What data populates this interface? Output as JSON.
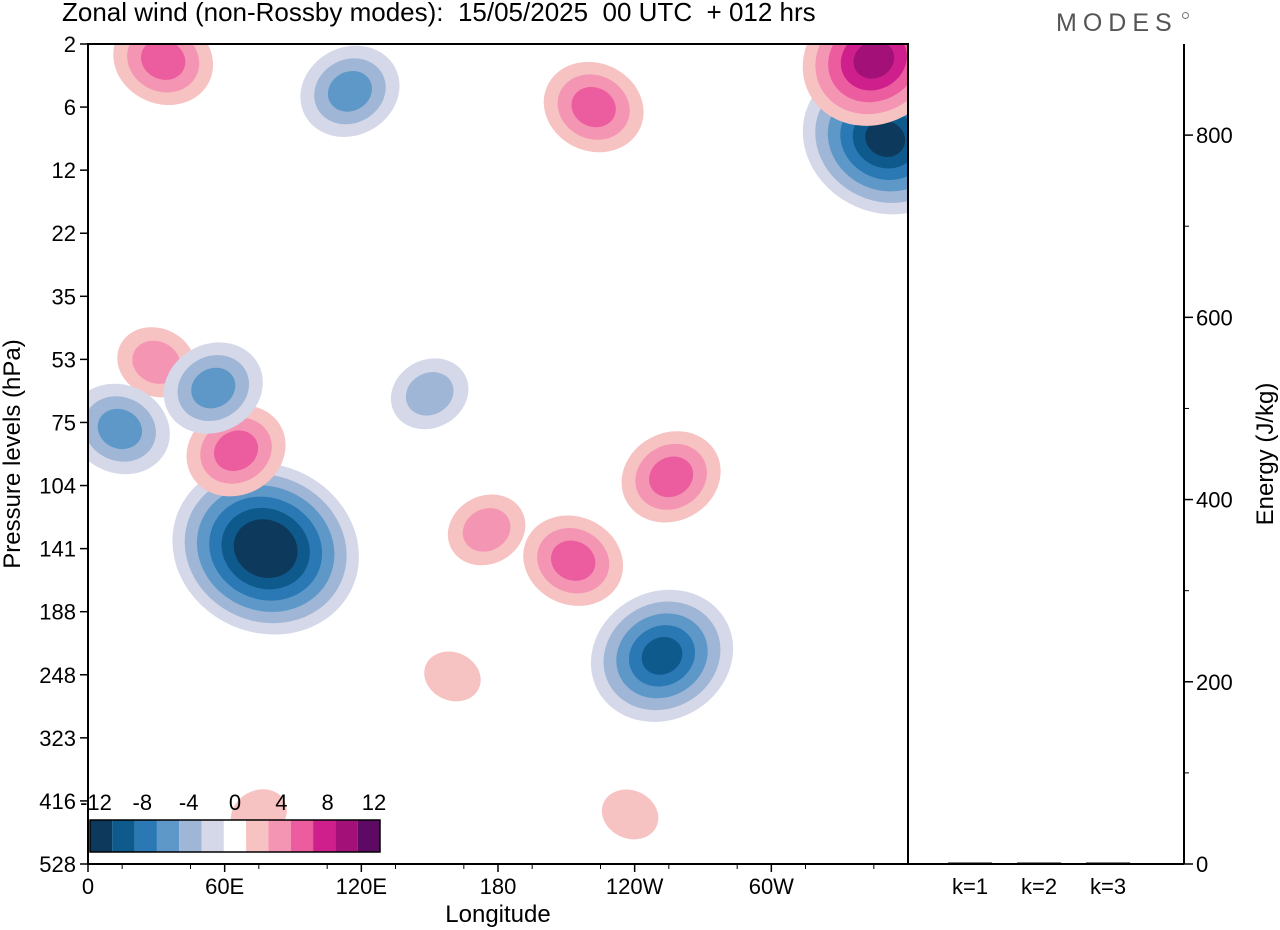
{
  "title": "Zonal wind (non-Rossby modes):  15/05/2025  00 UTC  + 012 hrs",
  "brand": "MODES",
  "colors": {
    "neg": [
      "#0d3a5c",
      "#0f5a8c",
      "#2a78b4",
      "#5e98c8",
      "#9fb6d6",
      "#d4d8e8"
    ],
    "zero": "#ffffff",
    "pos": [
      "#f7c2c2",
      "#f495b3",
      "#ec5da0",
      "#cf1f8c",
      "#a21078",
      "#5c0a64"
    ]
  },
  "chart_data": [
    {
      "type": "heatmap",
      "title": "Zonal wind (non-Rossby modes):  15/05/2025  00 UTC  + 012 hrs",
      "xlabel": "Longitude",
      "ylabel": "Pressure levels (hPa)",
      "x_ticks": [
        "0",
        "60E",
        "120E",
        "180",
        "120W",
        "60W"
      ],
      "y_ticks": [
        "2",
        "6",
        "12",
        "22",
        "35",
        "53",
        "75",
        "104",
        "141",
        "188",
        "248",
        "323",
        "416",
        "528"
      ],
      "colorbar": {
        "tick_labels": [
          "-12",
          "-8",
          "-4",
          "0",
          "4",
          "8",
          "12"
        ],
        "levels": [
          -14,
          -12,
          -10,
          -8,
          -6,
          -4,
          -2,
          2,
          4,
          6,
          8,
          10,
          12,
          14
        ]
      },
      "features": [
        {
          "lon": 78,
          "level": 141,
          "value": -14
        },
        {
          "lon": 252,
          "level": 230,
          "value": -10
        },
        {
          "lon": 350,
          "level": 9,
          "value": -12
        },
        {
          "lon": 115,
          "level": 5,
          "value": -6
        },
        {
          "lon": 33,
          "level": 3,
          "value": 7
        },
        {
          "lon": 345,
          "level": 3,
          "value": 10
        },
        {
          "lon": 222,
          "level": 6,
          "value": 6
        },
        {
          "lon": 65,
          "level": 88,
          "value": 7
        },
        {
          "lon": 213,
          "level": 150,
          "value": 7
        },
        {
          "lon": 256,
          "level": 100,
          "value": 6
        },
        {
          "lon": 30,
          "level": 54,
          "value": 4
        },
        {
          "lon": 55,
          "level": 63,
          "value": -6
        },
        {
          "lon": 14,
          "level": 78,
          "value": -6
        },
        {
          "lon": 175,
          "level": 130,
          "value": 5
        },
        {
          "lon": 238,
          "level": 440,
          "value": 3
        },
        {
          "lon": 75,
          "level": 440,
          "value": 3
        },
        {
          "lon": 160,
          "level": 250,
          "value": 3
        },
        {
          "lon": 150,
          "level": 65,
          "value": -4
        }
      ]
    },
    {
      "type": "bar",
      "categories": [
        "k=1",
        "k=2",
        "k=3"
      ],
      "values": [
        1.5,
        1.0,
        0.8
      ],
      "ylabel": "Energy (J/kg)",
      "y_ticks": [
        "0",
        "200",
        "400",
        "600",
        "800"
      ],
      "ylim": [
        0,
        900
      ]
    }
  ]
}
